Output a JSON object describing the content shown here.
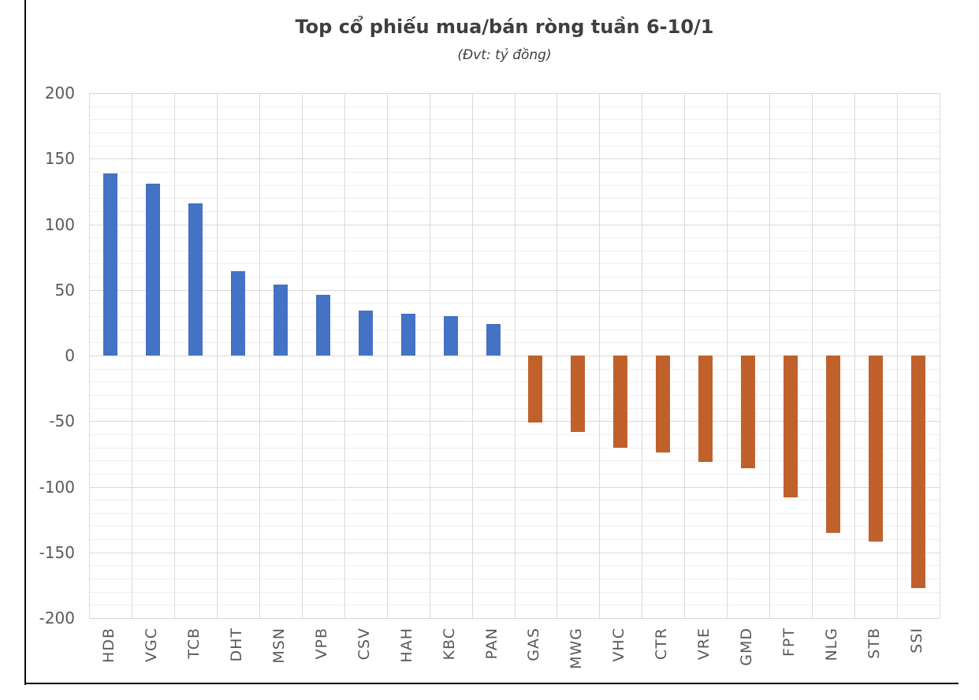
{
  "chart_data": {
    "type": "bar",
    "title": "Top cổ phiếu mua/bán ròng tuần 6-10/1",
    "subtitle": "(Đvt: tỷ đồng)",
    "categories": [
      "HDB",
      "VGC",
      "TCB",
      "DHT",
      "MSN",
      "VPB",
      "CSV",
      "HAH",
      "KBC",
      "PAN",
      "GAS",
      "MWG",
      "VHC",
      "CTR",
      "VRE",
      "GMD",
      "FPT",
      "NLG",
      "STB",
      "SSI"
    ],
    "values": [
      139,
      131,
      116,
      64,
      54,
      46,
      34,
      32,
      30,
      24,
      -51,
      -58,
      -70,
      -74,
      -81,
      -86,
      -108,
      -135,
      -142,
      -177
    ],
    "xlabel": "",
    "ylabel": "",
    "ylim": [
      -200,
      200
    ],
    "y_major_step": 50,
    "y_minor_step": 10,
    "y_tick_labels": [
      "200",
      "150",
      "100",
      "50",
      "0",
      "-50",
      "-100",
      "-150",
      "-200"
    ],
    "grid": "major+minor, no legend",
    "colors": {
      "positive_bar": "#4472c4",
      "negative_bar": "#c0612c",
      "major_gridline": "#d9d9d9",
      "minor_gridline": "#efefef",
      "axis_text": "#595959",
      "title_text": "#3f3f3f",
      "frame_line": "#0a0a0a"
    }
  }
}
